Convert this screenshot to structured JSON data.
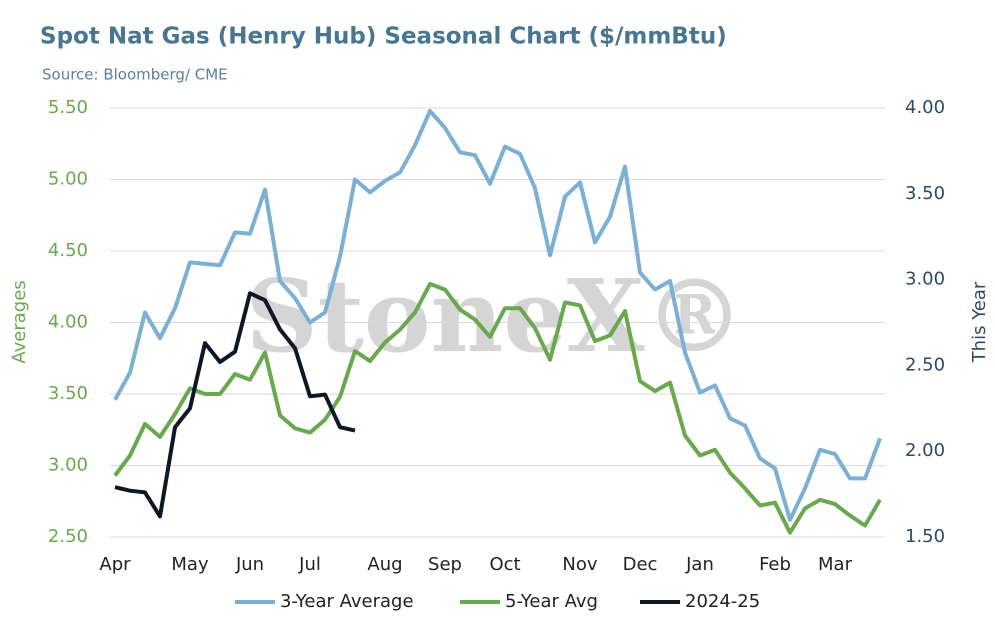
{
  "chart_data": {
    "type": "line",
    "title": "Spot Nat Gas (Henry Hub) Seasonal Chart ($/mmBtu)",
    "subtitle": "Source: Bloomberg/ CME",
    "watermark": "StoneX®",
    "y_label": "Averages",
    "y2_label": "This Year",
    "grid": true,
    "legend": "bottom",
    "categories": [
      "Apr",
      null,
      null,
      null,
      null,
      "May",
      null,
      null,
      null,
      "Jun",
      null,
      null,
      null,
      "Jul",
      null,
      null,
      null,
      null,
      "Aug",
      null,
      null,
      null,
      "Sep",
      null,
      null,
      null,
      "Oct",
      null,
      null,
      null,
      null,
      "Nov",
      null,
      null,
      null,
      "Dec",
      null,
      null,
      null,
      "Jan",
      null,
      null,
      null,
      null,
      "Feb",
      null,
      null,
      null,
      "Mar",
      null,
      null,
      null
    ],
    "ylim": [
      2.5,
      5.5
    ],
    "yticks": [
      {
        "value": 2.5,
        "label": "2.50"
      },
      {
        "value": 3,
        "label": "3.00"
      },
      {
        "value": 3.5,
        "label": "3.50"
      },
      {
        "value": 4,
        "label": "4.00"
      },
      {
        "value": 4.5,
        "label": "4.50"
      },
      {
        "value": 5,
        "label": "5.00"
      },
      {
        "value": 5.5,
        "label": "5.50"
      }
    ],
    "y2lim": [
      1.5,
      4.0
    ],
    "y2ticks": [
      {
        "value": 1.5,
        "label": "1.50"
      },
      {
        "value": 2,
        "label": "2.00"
      },
      {
        "value": 2.5,
        "label": "2.50"
      },
      {
        "value": 3,
        "label": "3.00"
      },
      {
        "value": 3.5,
        "label": "3.50"
      },
      {
        "value": 4,
        "label": "4.00"
      }
    ],
    "series": [
      {
        "name": "3-Year Average",
        "color": "#7bafd4",
        "values": [
          3.46,
          3.65,
          4.07,
          3.89,
          4.1,
          4.42,
          4.41,
          4.4,
          4.63,
          4.62,
          4.93,
          4.29,
          4.17,
          4.0,
          4.07,
          4.46,
          5.0,
          4.91,
          4.99,
          5.05,
          5.24,
          5.48,
          5.36,
          5.19,
          5.17,
          4.97,
          5.23,
          5.18,
          4.94,
          4.47,
          4.88,
          4.98,
          4.56,
          4.74,
          5.09,
          4.35,
          4.23,
          4.29,
          3.79,
          3.51,
          3.56,
          3.33,
          3.28,
          3.05,
          2.98,
          2.62,
          2.84,
          3.11,
          3.08,
          2.91,
          2.91,
          3.19
        ]
      },
      {
        "name": "5-Year Avg",
        "color": "#6aa84f",
        "values": [
          2.93,
          3.07,
          3.29,
          3.2,
          3.36,
          3.54,
          3.5,
          3.5,
          3.64,
          3.6,
          3.79,
          3.35,
          3.26,
          3.23,
          3.32,
          3.48,
          3.8,
          3.73,
          3.86,
          3.95,
          4.07,
          4.27,
          4.23,
          4.09,
          4.02,
          3.9,
          4.1,
          4.1,
          3.96,
          3.74,
          4.14,
          4.12,
          3.87,
          3.91,
          4.08,
          3.59,
          3.52,
          3.58,
          3.21,
          3.07,
          3.11,
          2.95,
          2.84,
          2.72,
          2.74,
          2.53,
          2.7,
          2.76,
          2.73,
          2.65,
          2.58,
          2.76
        ]
      },
      {
        "name": "2024-25",
        "color": "#0e1726",
        "axis": "y2",
        "values": [
          1.79,
          1.77,
          1.76,
          1.62,
          2.14,
          2.25,
          2.63,
          2.52,
          2.58,
          2.92,
          2.88,
          2.71,
          2.6,
          2.32,
          2.33,
          2.14,
          2.12,
          null,
          null,
          null,
          null,
          null,
          null,
          null,
          null,
          null,
          null,
          null,
          null,
          null,
          null,
          null,
          null,
          null,
          null,
          null,
          null,
          null,
          null,
          null,
          null,
          null,
          null,
          null,
          null,
          null,
          null,
          null,
          null,
          null,
          null,
          null
        ]
      }
    ]
  }
}
